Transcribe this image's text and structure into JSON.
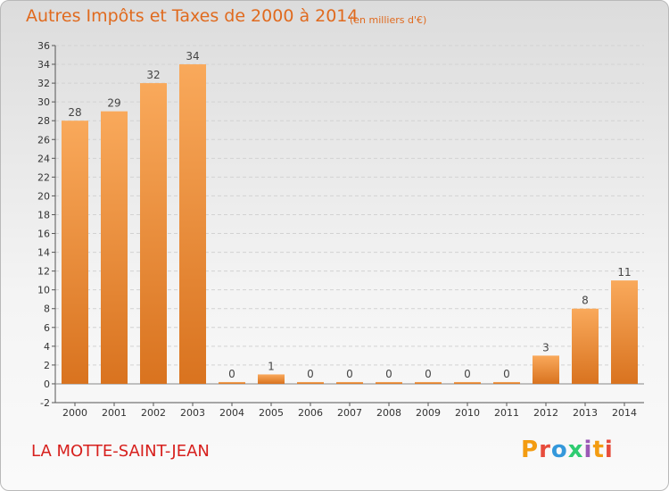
{
  "header": {
    "title": "Autres Impôts et Taxes de 2000 à 2014",
    "unit": "(en milliers d'€)"
  },
  "footer": {
    "commune": "LA MOTTE-SAINT-JEAN",
    "logo": "Proxiti"
  },
  "colors": {
    "title": "#e06a1e",
    "commune": "#d7201d",
    "bar_top": "#f9a95b",
    "bar_bottom": "#d9731f",
    "logo_letters": [
      "#f39c12",
      "#e74c3c",
      "#3498db",
      "#2ecc71",
      "#9b59b6",
      "#f39c12",
      "#e74c3c"
    ]
  },
  "chart_data": {
    "type": "bar",
    "title": "Autres Impôts et Taxes de 2000 à 2014",
    "xlabel": "",
    "ylabel": "",
    "categories": [
      "2000",
      "2001",
      "2002",
      "2003",
      "2004",
      "2005",
      "2006",
      "2007",
      "2008",
      "2009",
      "2010",
      "2011",
      "2012",
      "2013",
      "2014"
    ],
    "values": [
      28,
      29,
      32,
      34,
      0,
      1,
      0,
      0,
      0,
      0,
      0,
      0,
      3,
      8,
      11
    ],
    "ylim": [
      -2,
      36
    ],
    "yticks": [
      -2,
      0,
      2,
      4,
      6,
      8,
      10,
      12,
      14,
      16,
      18,
      20,
      22,
      24,
      26,
      28,
      30,
      32,
      34,
      36
    ],
    "grid": true
  }
}
